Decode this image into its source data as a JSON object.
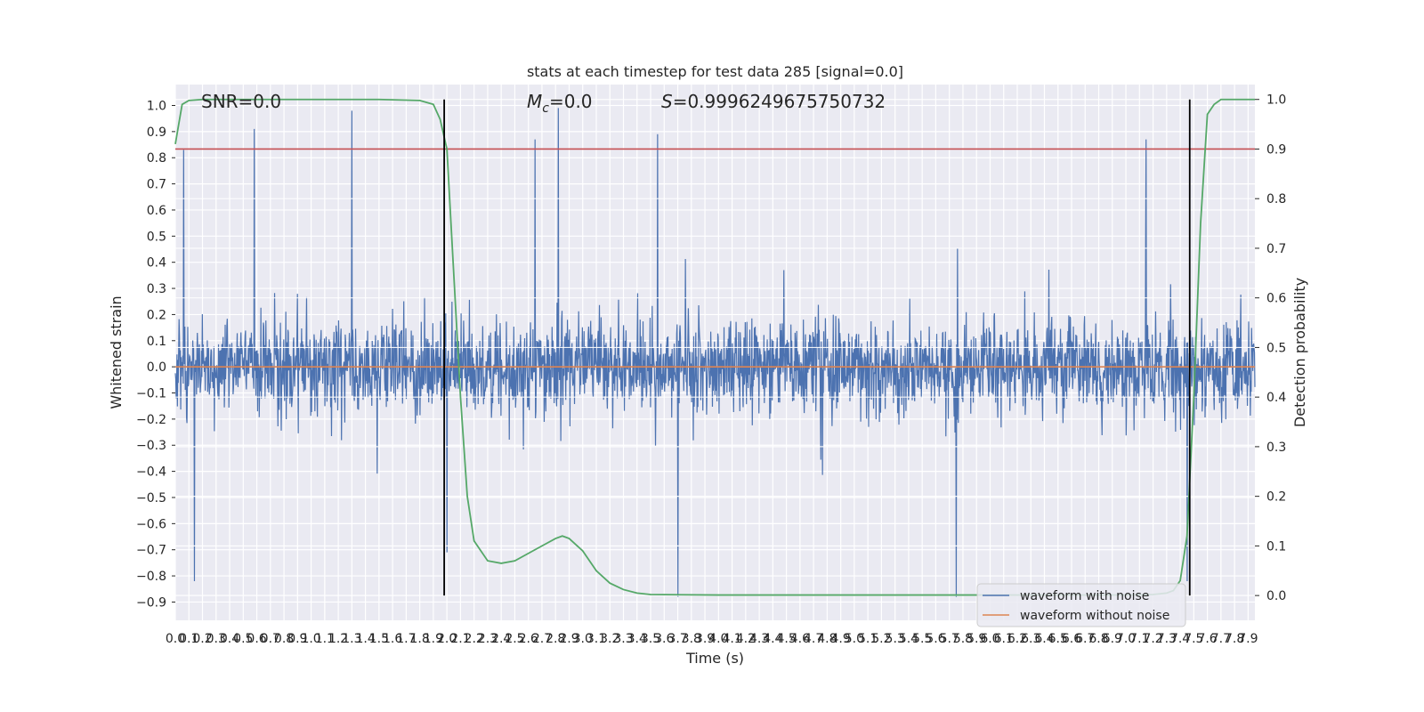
{
  "chart_data": {
    "type": "line",
    "title": "stats at each timestep for test data 285 [signal=0.0]",
    "xlabel": "Time (s)",
    "ylabel": "Whitened strain",
    "y2label": "Detection probability",
    "xlim": [
      0.0,
      7.95
    ],
    "ylim": [
      -0.97,
      1.08
    ],
    "y2lim": [
      -0.05,
      1.03
    ],
    "xticks": [
      "0.0",
      "0.1",
      "0.2",
      "0.3",
      "0.4",
      "0.5",
      "0.6",
      "0.7",
      "0.8",
      "0.9",
      "1.0",
      "1.1",
      "1.2",
      "1.3",
      "1.4",
      "1.5",
      "1.6",
      "1.7",
      "1.8",
      "1.9",
      "2.0",
      "2.1",
      "2.2",
      "2.3",
      "2.4",
      "2.5",
      "2.6",
      "2.7",
      "2.8",
      "2.9",
      "3.0",
      "3.1",
      "3.2",
      "3.3",
      "3.4",
      "3.5",
      "3.6",
      "3.7",
      "3.8",
      "3.9",
      "4.0",
      "4.1",
      "4.2",
      "4.3",
      "4.4",
      "4.5",
      "4.6",
      "4.7",
      "4.8",
      "4.9",
      "5.0",
      "5.1",
      "5.2",
      "5.3",
      "5.4",
      "5.5",
      "5.6",
      "5.7",
      "5.8",
      "5.9",
      "6.0",
      "6.1",
      "6.2",
      "6.3",
      "6.4",
      "6.5",
      "6.6",
      "6.7",
      "6.8",
      "6.9",
      "7.0",
      "7.1",
      "7.2",
      "7.3",
      "7.4",
      "7.5",
      "7.6",
      "7.7",
      "7.8",
      "7.9"
    ],
    "yticks": [
      "-0.9",
      "-0.8",
      "-0.7",
      "-0.6",
      "-0.5",
      "-0.4",
      "-0.3",
      "-0.2",
      "-0.1",
      "0.0",
      "0.1",
      "0.2",
      "0.3",
      "0.4",
      "0.5",
      "0.6",
      "0.7",
      "0.8",
      "0.9",
      "1.0"
    ],
    "y2ticks": [
      "0.0",
      "0.1",
      "0.2",
      "0.3",
      "0.4",
      "0.5",
      "0.6",
      "0.7",
      "0.8",
      "0.9",
      "1.0"
    ],
    "annotations": {
      "snr": "SNR=0.0",
      "mc_symbol": "M",
      "mc_subscript": "c",
      "mc_value": "=0.0",
      "s_symbol": "S",
      "s_value": "=0.9996249675750732"
    },
    "series": [
      {
        "name": "waveform with noise",
        "color": "#4c72b0",
        "description": "whitened noisy strain, dense oscillation",
        "envelope_peaks": [
          {
            "x": 0.06,
            "y": 0.83
          },
          {
            "x": 0.14,
            "y": -0.82
          },
          {
            "x": 0.58,
            "y": 0.91
          },
          {
            "x": 1.3,
            "y": 0.98
          },
          {
            "x": 2.0,
            "y": -0.71
          },
          {
            "x": 2.65,
            "y": 0.87
          },
          {
            "x": 2.82,
            "y": 0.99
          },
          {
            "x": 3.7,
            "y": -0.88
          },
          {
            "x": 3.55,
            "y": 0.89
          },
          {
            "x": 5.75,
            "y": -0.88
          },
          {
            "x": 7.15,
            "y": 0.87
          },
          {
            "x": 7.45,
            "y": -0.82
          }
        ]
      },
      {
        "name": "waveform without noise",
        "color": "#dd8452",
        "description": "constant at zero",
        "y_const": 0.0
      },
      {
        "name": "detection probability",
        "axis": "right",
        "color": "#55a868",
        "x": [
          0.0,
          0.05,
          0.1,
          0.2,
          0.5,
          1.0,
          1.5,
          1.8,
          1.9,
          1.95,
          2.0,
          2.03,
          2.07,
          2.1,
          2.15,
          2.2,
          2.3,
          2.4,
          2.5,
          2.6,
          2.7,
          2.8,
          2.85,
          2.9,
          3.0,
          3.1,
          3.2,
          3.3,
          3.4,
          3.5,
          4.0,
          5.0,
          6.0,
          7.0,
          7.2,
          7.3,
          7.35,
          7.4,
          7.45,
          7.5,
          7.55,
          7.6,
          7.65,
          7.7,
          7.8,
          7.95
        ],
        "y": [
          0.91,
          0.99,
          0.998,
          1.0,
          1.0,
          1.0,
          1.0,
          0.998,
          0.99,
          0.96,
          0.9,
          0.75,
          0.55,
          0.4,
          0.2,
          0.11,
          0.07,
          0.065,
          0.07,
          0.085,
          0.1,
          0.115,
          0.12,
          0.115,
          0.09,
          0.05,
          0.025,
          0.012,
          0.005,
          0.002,
          0.001,
          0.001,
          0.001,
          0.001,
          0.002,
          0.005,
          0.01,
          0.03,
          0.12,
          0.4,
          0.75,
          0.97,
          0.99,
          1.0,
          1.0,
          1.0
        ]
      }
    ],
    "hlines": [
      {
        "name": "threshold",
        "axis": "right",
        "y": 0.9,
        "color": "#c44e52"
      }
    ],
    "vlines": [
      {
        "name": "detection-start",
        "x": 1.98,
        "y2_from": 0.0,
        "y2_to": 1.0,
        "color": "#000000"
      },
      {
        "name": "detection-end",
        "x": 7.47,
        "y2_from": 0.0,
        "y2_to": 1.0,
        "color": "#000000"
      }
    ],
    "legend": {
      "position": "bottom-right",
      "entries": [
        {
          "label": "waveform with noise",
          "color": "#4c72b0"
        },
        {
          "label": "waveform without noise",
          "color": "#dd8452"
        }
      ]
    },
    "grid": true
  }
}
